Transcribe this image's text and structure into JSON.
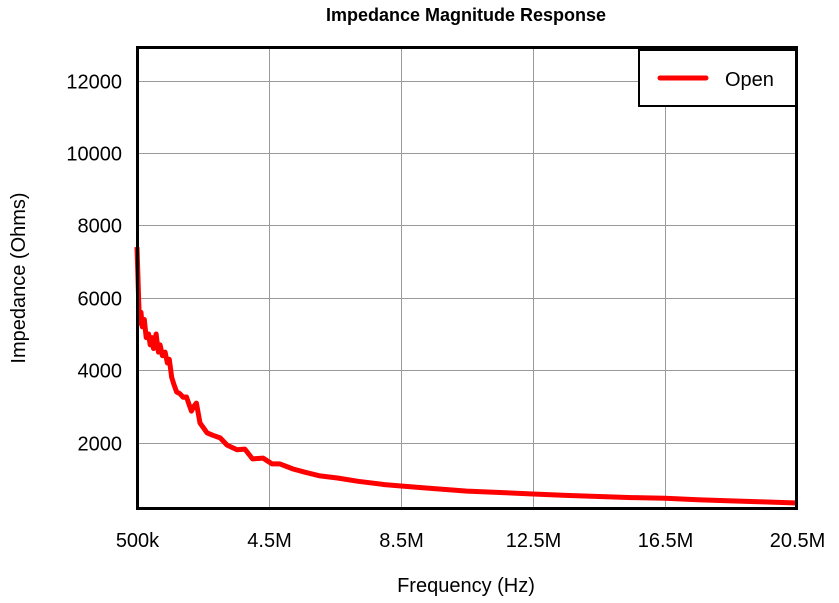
{
  "chart_data": {
    "type": "line",
    "title": "Impedance Magnitude Response",
    "xlabel": "Frequency (Hz)",
    "ylabel": "Impedance (Ohms)",
    "xlim": [
      0.5,
      20.5
    ],
    "ylim": [
      165,
      12930
    ],
    "x_unit": "MHz",
    "x_ticks": [
      0.5,
      4.5,
      8.5,
      12.5,
      16.5,
      20.5
    ],
    "x_tick_labels": [
      "500k",
      "4.5M",
      "8.5M",
      "12.5M",
      "16.5M",
      "20.5M"
    ],
    "y_ticks": [
      2000,
      4000,
      6000,
      8000,
      10000,
      12000
    ],
    "y_tick_labels": [
      "2000",
      "4000",
      "6000",
      "8000",
      "10000",
      "12000"
    ],
    "grid": true,
    "legend_position": "top-right",
    "series": [
      {
        "name": "Open",
        "color": "#ff0000",
        "x": [
          0.5,
          0.52,
          0.55,
          0.58,
          0.62,
          0.66,
          0.72,
          0.78,
          0.85,
          0.9,
          0.95,
          1.0,
          1.08,
          1.15,
          1.2,
          1.27,
          1.35,
          1.42,
          1.48,
          1.55,
          1.62,
          1.7,
          1.8,
          1.9,
          2.0,
          2.08,
          2.15,
          2.22,
          2.3,
          2.41,
          2.52,
          2.62,
          2.8,
          3.02,
          3.23,
          3.53,
          3.77,
          4.0,
          4.32,
          4.59,
          4.83,
          5.23,
          5.6,
          6.05,
          6.6,
          7.2,
          8.0,
          8.5,
          9.5,
          10.5,
          11.5,
          12.5,
          13.5,
          14.5,
          15.5,
          16.5,
          17.5,
          18.5,
          19.5,
          20.5
        ],
        "y": [
          7400,
          6800,
          5900,
          5300,
          5600,
          5200,
          5400,
          4900,
          5000,
          4700,
          4900,
          4600,
          5000,
          4500,
          4700,
          4400,
          4500,
          4200,
          4300,
          3800,
          3600,
          3400,
          3350,
          3250,
          3260,
          3050,
          2870,
          3000,
          3090,
          2540,
          2400,
          2270,
          2200,
          2130,
          1930,
          1800,
          1820,
          1550,
          1570,
          1410,
          1410,
          1270,
          1180,
          1080,
          1020,
          930,
          840,
          800,
          730,
          660,
          620,
          580,
          540,
          510,
          480,
          460,
          420,
          390,
          360,
          330
        ]
      }
    ]
  }
}
